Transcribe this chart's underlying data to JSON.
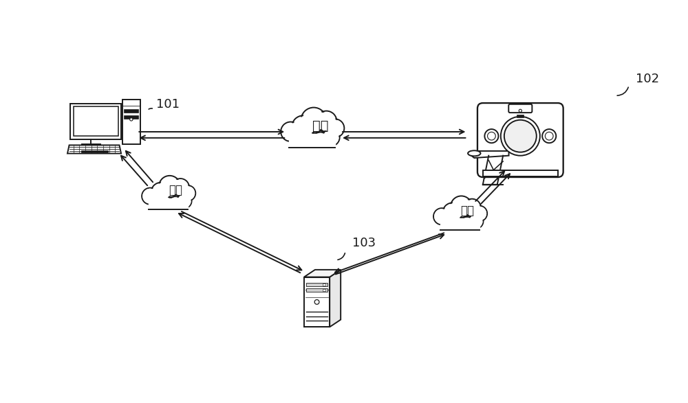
{
  "background_color": "#ffffff",
  "label_101": "101",
  "label_102": "102",
  "label_103": "103",
  "network_text": "网络",
  "figsize": [
    10.0,
    5.87
  ],
  "dpi": 100,
  "line_color": "#1a1a1a",
  "lw": 1.4
}
